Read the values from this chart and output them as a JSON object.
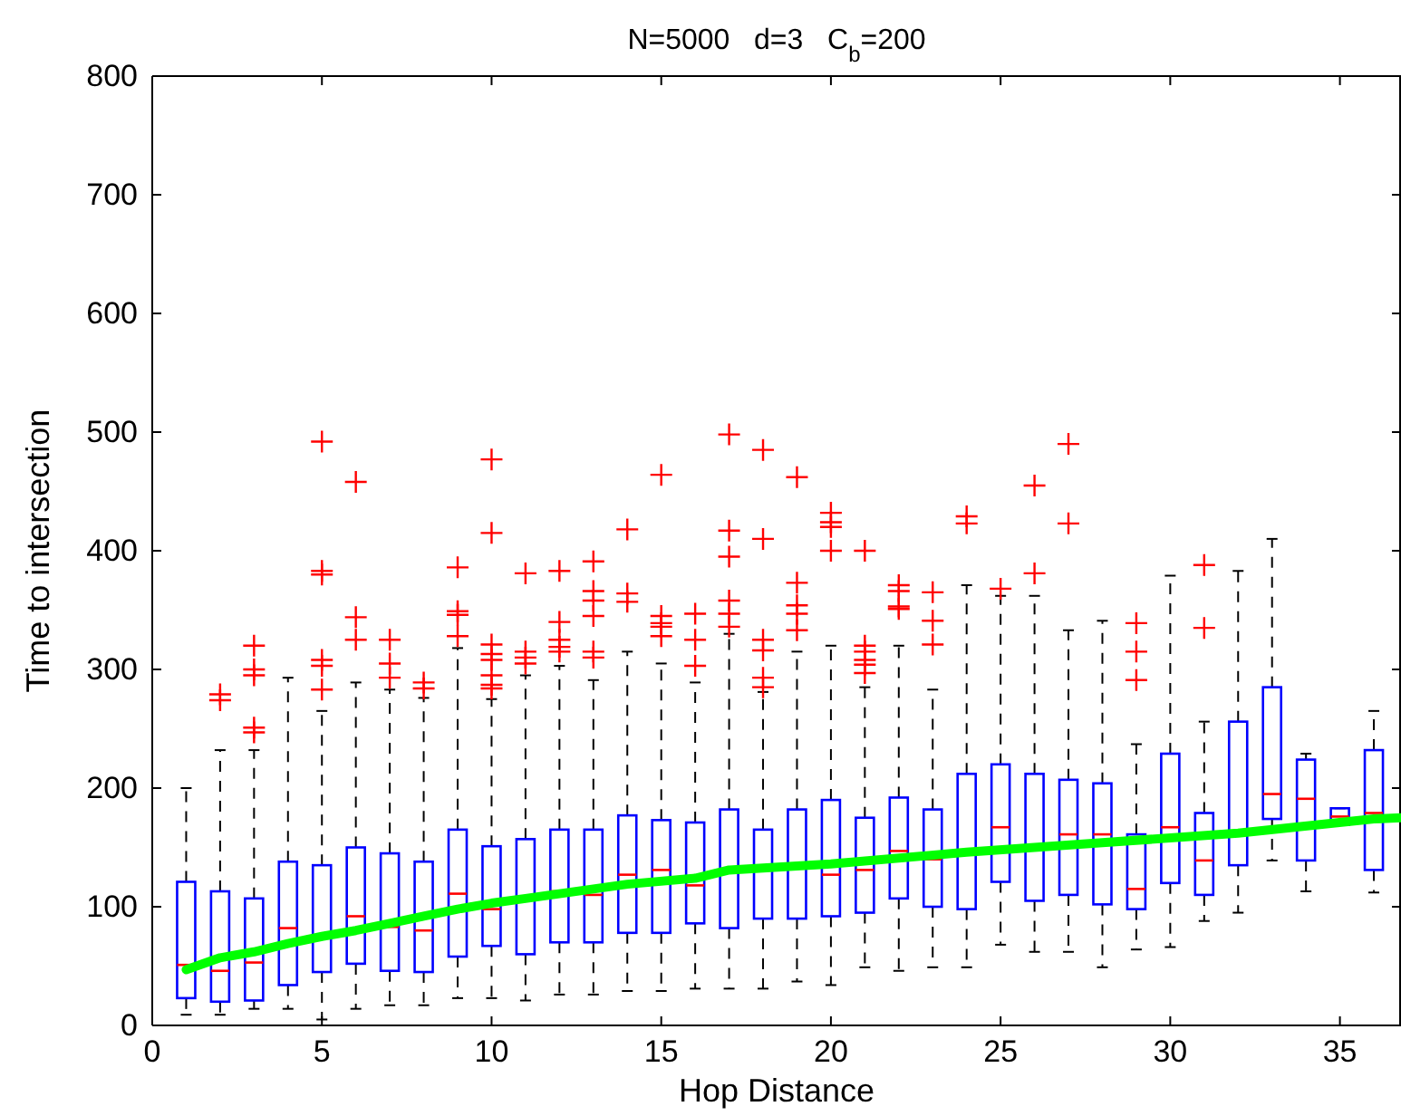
{
  "chart_data": {
    "type": "box",
    "title": "N=5000   d=3   C$_{b}$=200",
    "xlabel": "Hop Distance",
    "ylabel": "Time to intersection",
    "xlim": [
      0,
      36.8
    ],
    "xticks": [
      0,
      5,
      10,
      15,
      20,
      25,
      30,
      35
    ],
    "ylim": [
      0,
      800
    ],
    "yticks": [
      0,
      100,
      200,
      300,
      400,
      500,
      600,
      700,
      800
    ],
    "series": [
      {
        "color": "#0000ff",
        "x": [
          1,
          2,
          3,
          4,
          5,
          6,
          7,
          8,
          9,
          10,
          11,
          12,
          13,
          14,
          15,
          16,
          17,
          18,
          19,
          20,
          21,
          22,
          23,
          24,
          25,
          26,
          27,
          28,
          29,
          30,
          31,
          32,
          33,
          34,
          35,
          36
        ],
        "boxes": [
          {
            "low": 9,
            "q1": 23,
            "median": 51,
            "q3": 121,
            "high": 200
          },
          {
            "low": 9,
            "q1": 20,
            "median": 46,
            "q3": 113,
            "high": 232,
            "outliers": [
              279,
              274
            ]
          },
          {
            "low": 14,
            "q1": 21,
            "median": 53,
            "q3": 107,
            "high": 232,
            "outliers": [
              320,
              300,
              295,
              251,
              247
            ]
          },
          {
            "low": 14,
            "q1": 34,
            "median": 82,
            "q3": 138,
            "high": 293
          },
          {
            "low": 5,
            "q1": 45,
            "median": 75,
            "q3": 135,
            "high": 265,
            "outliers": [
              492,
              383,
              380,
              308,
              303,
              283
            ]
          },
          {
            "low": 14,
            "q1": 52,
            "median": 92,
            "q3": 150,
            "high": 289,
            "outliers": [
              458,
              344,
              325
            ]
          },
          {
            "low": 17,
            "q1": 46,
            "median": 83,
            "q3": 145,
            "high": 283,
            "outliers": [
              325,
              305,
              293
            ]
          },
          {
            "low": 17,
            "q1": 45,
            "median": 80,
            "q3": 138,
            "high": 276,
            "outliers": [
              289,
              284
            ]
          },
          {
            "low": 23,
            "q1": 58,
            "median": 111,
            "q3": 165,
            "high": 318,
            "outliers": [
              386,
              349,
              346,
              328
            ]
          },
          {
            "low": 23,
            "q1": 67,
            "median": 98,
            "q3": 151,
            "high": 275,
            "outliers": [
              477,
              415,
              321,
              313,
              308,
              295,
              287,
              284
            ]
          },
          {
            "low": 21,
            "q1": 60,
            "median": 107,
            "q3": 157,
            "high": 295,
            "outliers": [
              381,
              315,
              310,
              305
            ]
          },
          {
            "low": 26,
            "q1": 70,
            "median": 113,
            "q3": 165,
            "high": 303,
            "outliers": [
              383,
              340,
              325,
              319,
              315
            ]
          },
          {
            "low": 26,
            "q1": 70,
            "median": 110,
            "q3": 165,
            "high": 291,
            "outliers": [
              391,
              366,
              358,
              345,
              315,
              310
            ]
          },
          {
            "low": 29,
            "q1": 78,
            "median": 127,
            "q3": 177,
            "high": 315,
            "outliers": [
              418,
              364,
              357
            ]
          },
          {
            "low": 29,
            "q1": 78,
            "median": 131,
            "q3": 173,
            "high": 305,
            "outliers": [
              464,
              345,
              339,
              336,
              328
            ]
          },
          {
            "low": 31,
            "q1": 86,
            "median": 118,
            "q3": 171,
            "high": 289,
            "outliers": [
              347,
              325,
              303
            ]
          },
          {
            "low": 31,
            "q1": 82,
            "median": 129,
            "q3": 182,
            "high": 330,
            "outliers": [
              498,
              417,
              395,
              358,
              347,
              336
            ]
          },
          {
            "low": 31,
            "q1": 90,
            "median": 133,
            "q3": 165,
            "high": 281,
            "outliers": [
              485,
              410,
              325,
              316,
              293,
              285
            ]
          },
          {
            "low": 37,
            "q1": 90,
            "median": 136,
            "q3": 182,
            "high": 315,
            "outliers": [
              462,
              373,
              354,
              347,
              333
            ]
          },
          {
            "low": 34,
            "q1": 92,
            "median": 127,
            "q3": 190,
            "high": 320,
            "outliers": [
              432,
              424,
              420,
              400
            ]
          },
          {
            "low": 49,
            "q1": 95,
            "median": 131,
            "q3": 175,
            "high": 285,
            "outliers": [
              400,
              320,
              315,
              308,
              304,
              297
            ]
          },
          {
            "low": 46,
            "q1": 107,
            "median": 147,
            "q3": 192,
            "high": 320,
            "outliers": [
              371,
              366,
              353,
              351
            ]
          },
          {
            "low": 49,
            "q1": 100,
            "median": 140,
            "q3": 182,
            "high": 283,
            "outliers": [
              365,
              341,
              321
            ]
          },
          {
            "low": 49,
            "q1": 98,
            "median": 147,
            "q3": 212,
            "high": 371,
            "outliers": [
              429,
              423
            ]
          },
          {
            "low": 68,
            "q1": 121,
            "median": 167,
            "q3": 220,
            "high": 362,
            "outliers": [
              368
            ]
          },
          {
            "low": 62,
            "q1": 105,
            "median": 152,
            "q3": 212,
            "high": 362,
            "outliers": [
              455,
              381
            ]
          },
          {
            "low": 62,
            "q1": 110,
            "median": 161,
            "q3": 207,
            "high": 333,
            "outliers": [
              490,
              423
            ]
          },
          {
            "low": 49,
            "q1": 102,
            "median": 161,
            "q3": 204,
            "high": 341
          },
          {
            "low": 64,
            "q1": 98,
            "median": 115,
            "q3": 161,
            "high": 237,
            "outliers": [
              339,
              315,
              291
            ]
          },
          {
            "low": 66,
            "q1": 120,
            "median": 167,
            "q3": 229,
            "high": 379
          },
          {
            "low": 88,
            "q1": 110,
            "median": 139,
            "q3": 179,
            "high": 256,
            "outliers": [
              388,
              335
            ]
          },
          {
            "low": 95,
            "q1": 135,
            "median": 163,
            "q3": 256,
            "high": 383
          },
          {
            "low": 139,
            "q1": 174,
            "median": 195,
            "q3": 285,
            "high": 410
          },
          {
            "low": 113,
            "q1": 139,
            "median": 191,
            "q3": 224,
            "high": 229
          },
          {
            "low": 169,
            "q1": 169,
            "median": 176,
            "q3": 183,
            "high": 183
          },
          {
            "low": 112,
            "q1": 131,
            "median": 179,
            "q3": 232,
            "high": 265
          }
        ]
      },
      {
        "type": "line",
        "color": "#00ff00",
        "x": [
          1,
          2,
          3,
          4,
          5,
          6,
          7,
          8,
          9,
          10,
          11,
          12,
          14,
          16,
          17,
          20,
          24,
          28,
          32,
          36,
          36.8
        ],
        "values": [
          47,
          57,
          62,
          69,
          75,
          80,
          86,
          92,
          98,
          103,
          107,
          111,
          119,
          124,
          131,
          136,
          146,
          154,
          162,
          174,
          175
        ]
      }
    ]
  }
}
